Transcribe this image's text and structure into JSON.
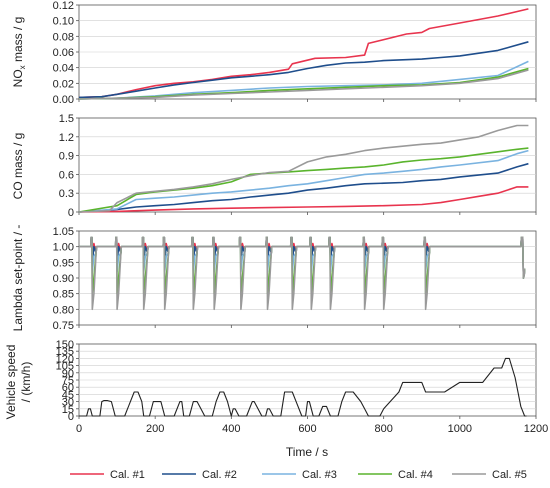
{
  "chart_data": [
    {
      "type": "line",
      "ylabel_main": "NO",
      "ylabel_sub": "x",
      "ylabel_rest": " mass / g",
      "ylim": [
        0,
        0.12
      ],
      "yticks": [
        "0.00",
        "0.02",
        "0.04",
        "0.06",
        "0.08",
        "0.10",
        "0.12"
      ],
      "ytick_values": [
        0,
        0.02,
        0.04,
        0.06,
        0.08,
        0.1,
        0.12
      ],
      "xlim": [
        0,
        1200
      ],
      "series": [
        {
          "name": "Cal. #1",
          "color": "#e8344e",
          "x": [
            0,
            60,
            100,
            150,
            200,
            250,
            300,
            350,
            400,
            450,
            500,
            550,
            560,
            620,
            700,
            750,
            760,
            860,
            900,
            920,
            1000,
            1100,
            1180
          ],
          "y": [
            0.002,
            0.003,
            0.006,
            0.012,
            0.017,
            0.02,
            0.022,
            0.025,
            0.029,
            0.031,
            0.034,
            0.038,
            0.045,
            0.052,
            0.053,
            0.056,
            0.071,
            0.083,
            0.085,
            0.09,
            0.097,
            0.106,
            0.115
          ]
        },
        {
          "name": "Cal. #2",
          "color": "#1f4e8c",
          "x": [
            0,
            60,
            100,
            150,
            200,
            250,
            300,
            350,
            400,
            450,
            500,
            550,
            600,
            650,
            700,
            750,
            800,
            850,
            900,
            950,
            1000,
            1100,
            1180
          ],
          "y": [
            0.002,
            0.003,
            0.006,
            0.01,
            0.014,
            0.018,
            0.021,
            0.024,
            0.027,
            0.029,
            0.031,
            0.034,
            0.039,
            0.043,
            0.046,
            0.047,
            0.049,
            0.05,
            0.051,
            0.053,
            0.055,
            0.062,
            0.073
          ]
        },
        {
          "name": "Cal. #3",
          "color": "#7ab3e0",
          "x": [
            0,
            100,
            200,
            300,
            400,
            500,
            600,
            700,
            800,
            900,
            1000,
            1100,
            1180
          ],
          "y": [
            0,
            0.001,
            0.004,
            0.008,
            0.011,
            0.014,
            0.016,
            0.017,
            0.018,
            0.02,
            0.025,
            0.03,
            0.048
          ]
        },
        {
          "name": "Cal. #4",
          "color": "#5ab42d",
          "x": [
            0,
            100,
            200,
            300,
            400,
            500,
            600,
            700,
            800,
            900,
            1000,
            1100,
            1180
          ],
          "y": [
            0,
            0.001,
            0.003,
            0.006,
            0.008,
            0.011,
            0.013,
            0.015,
            0.017,
            0.018,
            0.021,
            0.028,
            0.039
          ]
        },
        {
          "name": "Cal. #5",
          "color": "#9a9a9a",
          "x": [
            0,
            100,
            200,
            300,
            400,
            500,
            600,
            700,
            800,
            900,
            1000,
            1100,
            1180
          ],
          "y": [
            0,
            0.001,
            0.002,
            0.005,
            0.007,
            0.009,
            0.011,
            0.013,
            0.015,
            0.017,
            0.02,
            0.026,
            0.037
          ]
        }
      ]
    },
    {
      "type": "line",
      "ylabel": "CO mass / g",
      "ylim": [
        0,
        1.5
      ],
      "yticks": [
        "0",
        "0.3",
        "0.6",
        "0.9",
        "1.2",
        "1.5"
      ],
      "ytick_values": [
        0,
        0.3,
        0.6,
        0.9,
        1.2,
        1.5
      ],
      "xlim": [
        0,
        1200
      ],
      "series": [
        {
          "name": "Cal. #1",
          "color": "#e8344e",
          "x": [
            0,
            100,
            200,
            300,
            400,
            500,
            600,
            700,
            800,
            900,
            950,
            1000,
            1050,
            1100,
            1150,
            1180
          ],
          "y": [
            0,
            0.01,
            0.03,
            0.05,
            0.06,
            0.07,
            0.08,
            0.09,
            0.1,
            0.12,
            0.15,
            0.2,
            0.25,
            0.3,
            0.4,
            0.4
          ]
        },
        {
          "name": "Cal. #2",
          "color": "#1f4e8c",
          "x": [
            0,
            100,
            150,
            200,
            250,
            300,
            350,
            400,
            450,
            500,
            550,
            600,
            650,
            700,
            750,
            800,
            850,
            900,
            950,
            1000,
            1100,
            1150,
            1180
          ],
          "y": [
            0,
            0.04,
            0.08,
            0.1,
            0.12,
            0.15,
            0.18,
            0.2,
            0.24,
            0.27,
            0.3,
            0.35,
            0.38,
            0.42,
            0.45,
            0.46,
            0.47,
            0.5,
            0.52,
            0.56,
            0.62,
            0.72,
            0.77
          ]
        },
        {
          "name": "Cal. #3",
          "color": "#7ab3e0",
          "x": [
            0,
            100,
            150,
            200,
            250,
            300,
            350,
            400,
            450,
            500,
            550,
            600,
            650,
            700,
            750,
            800,
            850,
            900,
            950,
            1000,
            1100,
            1150,
            1180
          ],
          "y": [
            0,
            0.05,
            0.2,
            0.22,
            0.24,
            0.27,
            0.3,
            0.32,
            0.35,
            0.38,
            0.42,
            0.45,
            0.5,
            0.55,
            0.6,
            0.62,
            0.65,
            0.68,
            0.72,
            0.75,
            0.82,
            0.93,
            0.98
          ]
        },
        {
          "name": "Cal. #4",
          "color": "#5ab42d",
          "x": [
            0,
            100,
            150,
            200,
            250,
            300,
            350,
            400,
            450,
            500,
            550,
            600,
            650,
            700,
            750,
            800,
            850,
            900,
            950,
            1000,
            1050,
            1100,
            1150,
            1180
          ],
          "y": [
            0,
            0.1,
            0.28,
            0.32,
            0.35,
            0.38,
            0.42,
            0.48,
            0.6,
            0.62,
            0.64,
            0.66,
            0.68,
            0.7,
            0.72,
            0.75,
            0.8,
            0.83,
            0.85,
            0.88,
            0.92,
            0.96,
            1.0,
            1.02
          ]
        },
        {
          "name": "Cal. #5",
          "color": "#9a9a9a",
          "x": [
            0,
            80,
            100,
            150,
            200,
            250,
            300,
            350,
            400,
            450,
            500,
            550,
            600,
            650,
            700,
            750,
            800,
            850,
            900,
            950,
            1000,
            1050,
            1100,
            1150,
            1180
          ],
          "y": [
            0,
            0.02,
            0.15,
            0.3,
            0.33,
            0.36,
            0.4,
            0.45,
            0.52,
            0.58,
            0.63,
            0.65,
            0.8,
            0.88,
            0.92,
            0.98,
            1.02,
            1.05,
            1.08,
            1.1,
            1.15,
            1.2,
            1.3,
            1.38,
            1.38
          ]
        }
      ]
    },
    {
      "type": "line",
      "ylabel": "Lambda set-point / -",
      "ylim": [
        0.75,
        1.05
      ],
      "yticks": [
        "0.75",
        "0.80",
        "0.85",
        "0.90",
        "0.95",
        "1.00",
        "1.05"
      ],
      "ytick_values": [
        0.75,
        0.8,
        0.85,
        0.9,
        0.95,
        1.0,
        1.05
      ],
      "xlim": [
        0,
        1200
      ],
      "decel_times": [
        35,
        100,
        170,
        225,
        300,
        355,
        425,
        495,
        560,
        610,
        660,
        750,
        800,
        910
      ],
      "late_times": [
        1165
      ],
      "series": [
        {
          "name": "Cal. #1",
          "color": "#e8344e",
          "x": [
            0,
            1200
          ],
          "y": [
            1.0,
            1.0
          ]
        },
        {
          "name": "Cal. #2",
          "color": "#1f4e8c",
          "x": [
            0,
            1200
          ],
          "y": [
            1.0,
            1.0
          ]
        },
        {
          "name": "Cal. #3",
          "color": "#7ab3e0",
          "x": [
            0,
            1200
          ],
          "y": [
            1.0,
            1.0
          ]
        },
        {
          "name": "Cal. #4",
          "color": "#5ab42d",
          "x": [
            0,
            1200
          ],
          "y": [
            1.0,
            1.0
          ]
        },
        {
          "name": "Cal. #5",
          "color": "#9a9a9a",
          "x": [
            0,
            1200
          ],
          "y": [
            1.0,
            1.0
          ]
        }
      ]
    },
    {
      "type": "line",
      "ylabel_line1": "Vehicle speed",
      "ylabel_line2": "/ (km/h)",
      "ylim": [
        0,
        150
      ],
      "yticks": [
        "0",
        "15",
        "30",
        "45",
        "60",
        "75",
        "90",
        "105",
        "120",
        "135",
        "150"
      ],
      "ytick_values": [
        0,
        15,
        30,
        45,
        60,
        75,
        90,
        105,
        120,
        135,
        150
      ],
      "xlim": [
        0,
        1200
      ],
      "xlabel": "Time / s",
      "xticks": [
        "0",
        "200",
        "400",
        "600",
        "800",
        "1000",
        "1200"
      ],
      "xtick_values": [
        0,
        200,
        400,
        600,
        800,
        1000,
        1200
      ],
      "series": [
        {
          "name": "speed",
          "color": "#222222",
          "x": [
            0,
            20,
            25,
            30,
            35,
            40,
            55,
            60,
            65,
            75,
            85,
            95,
            100,
            110,
            120,
            135,
            145,
            155,
            165,
            170,
            175,
            185,
            195,
            205,
            215,
            220,
            225,
            230,
            240,
            250,
            265,
            270,
            275,
            280,
            290,
            300,
            310,
            320,
            330,
            340,
            350,
            360,
            370,
            380,
            390,
            400,
            405,
            410,
            420,
            430,
            440,
            455,
            460,
            470,
            480,
            490,
            495,
            500,
            510,
            530,
            540,
            550,
            560,
            570,
            585,
            595,
            600,
            605,
            610,
            615,
            630,
            640,
            650,
            660,
            670,
            680,
            690,
            700,
            720,
            740,
            750,
            760,
            770,
            780,
            790,
            800,
            840,
            850,
            880,
            890,
            900,
            910,
            920,
            960,
            1000,
            1020,
            1050,
            1060,
            1090,
            1110,
            1120,
            1130,
            1145,
            1160,
            1170,
            1175
          ],
          "y": [
            0,
            0,
            15,
            15,
            0,
            0,
            0,
            30,
            32,
            32,
            30,
            0,
            0,
            0,
            0,
            30,
            50,
            50,
            30,
            0,
            0,
            0,
            30,
            30,
            30,
            15,
            0,
            0,
            0,
            0,
            30,
            30,
            0,
            0,
            0,
            30,
            30,
            15,
            0,
            0,
            0,
            30,
            50,
            50,
            30,
            0,
            15,
            15,
            0,
            0,
            0,
            30,
            30,
            15,
            0,
            0,
            15,
            15,
            0,
            0,
            50,
            50,
            50,
            30,
            0,
            0,
            30,
            30,
            15,
            0,
            0,
            20,
            20,
            0,
            0,
            0,
            30,
            50,
            50,
            30,
            15,
            0,
            0,
            0,
            0,
            15,
            50,
            70,
            70,
            70,
            70,
            50,
            50,
            50,
            70,
            70,
            70,
            70,
            100,
            100,
            120,
            120,
            80,
            20,
            0,
            0
          ]
        }
      ]
    }
  ],
  "legend": [
    "Cal. #1",
    "Cal. #2",
    "Cal. #3",
    "Cal. #4",
    "Cal. #5"
  ],
  "colors": {
    "cal1": "#e8344e",
    "cal2": "#1f4e8c",
    "cal3": "#7ab3e0",
    "cal4": "#5ab42d",
    "cal5": "#9a9a9a"
  }
}
